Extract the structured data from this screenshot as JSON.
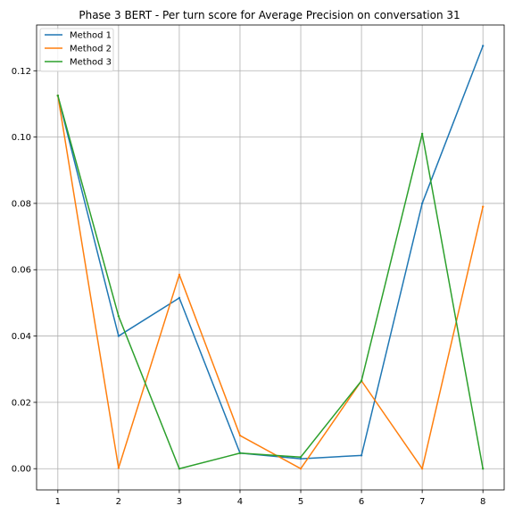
{
  "chart_data": {
    "type": "line",
    "title": "Phase 3 BERT - Per turn score for Average Precision on conversation 31",
    "xlabel": "",
    "ylabel": "",
    "x": [
      1,
      2,
      3,
      4,
      5,
      6,
      7,
      8
    ],
    "xlim": [
      0.65,
      8.35
    ],
    "ylim": [
      -0.0064,
      0.1338
    ],
    "x_ticks": [
      1,
      2,
      3,
      4,
      5,
      6,
      7,
      8
    ],
    "y_ticks": [
      0.0,
      0.02,
      0.04,
      0.06,
      0.08,
      0.1,
      0.12
    ],
    "y_tick_labels": [
      "0.00",
      "0.02",
      "0.04",
      "0.06",
      "0.08",
      "0.10",
      "0.12"
    ],
    "grid": true,
    "legend_position": "top-left",
    "series": [
      {
        "name": "Method 1",
        "color": "#1f77b4",
        "values": [
          0.1125,
          0.04,
          0.0515,
          0.0047,
          0.003,
          0.004,
          0.08,
          0.1275
        ]
      },
      {
        "name": "Method 2",
        "color": "#ff7f0e",
        "values": [
          0.1125,
          0.0002,
          0.0585,
          0.01,
          0.0,
          0.0265,
          0.0,
          0.079
        ]
      },
      {
        "name": "Method 3",
        "color": "#2ca02c",
        "values": [
          0.1125,
          0.046,
          0.0,
          0.0047,
          0.0035,
          0.0265,
          0.101,
          0.0
        ]
      }
    ]
  }
}
